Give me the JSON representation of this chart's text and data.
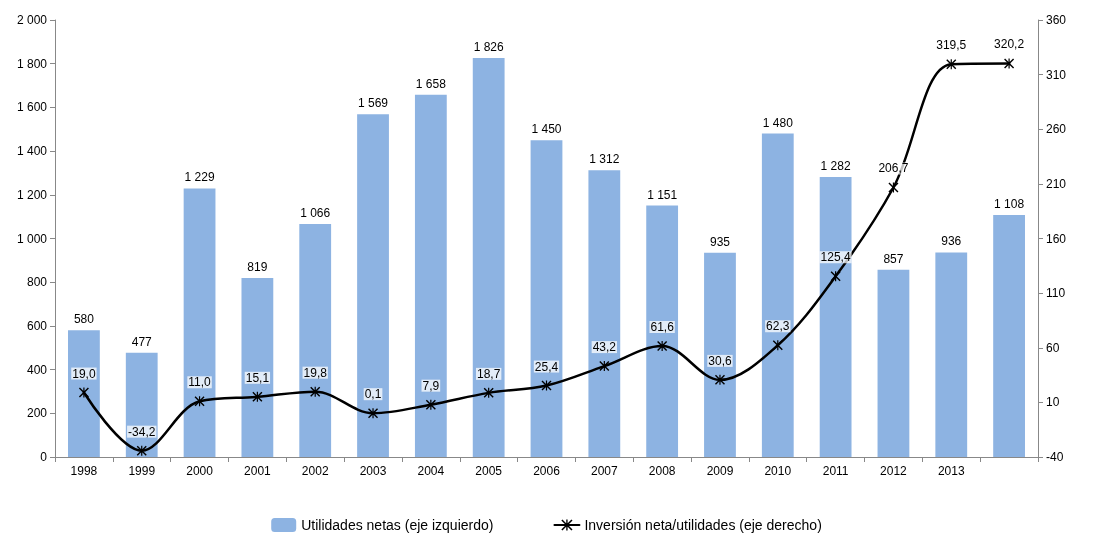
{
  "chart_data": {
    "type": "bar",
    "categories": [
      "1998",
      "1999",
      "2000",
      "2001",
      "2002",
      "2003",
      "2004",
      "2005",
      "2006",
      "2007",
      "2008",
      "2009",
      "2010",
      "2011",
      "2012",
      "2013",
      null
    ],
    "series": [
      {
        "name": "Utilidades netas (eje izquierdo)",
        "color": "#8db3e2",
        "values": [
          580,
          477,
          1229,
          819,
          1066,
          1569,
          1658,
          1826,
          1450,
          1312,
          1151,
          935,
          1480,
          1282,
          857,
          936,
          1108
        ],
        "value_labels": [
          "580",
          "477",
          "1 229",
          "819",
          "1 066",
          "1 569",
          "1 658",
          "1 826",
          "1 450",
          "1 312",
          "1 151",
          "935",
          "1 480",
          "1 282",
          "857",
          "936",
          "1 108"
        ]
      },
      {
        "name": "Inversión neta/utilidades (eje derecho)",
        "type": "line",
        "axis": "y2",
        "color": "#000000",
        "marker": "cross",
        "line_style": "solid",
        "values": [
          19.0,
          -34.2,
          11.0,
          15.1,
          19.8,
          0.1,
          7.9,
          18.7,
          25.4,
          43.2,
          61.6,
          30.6,
          62.3,
          125.4,
          206.7,
          319.5,
          320.2
        ],
        "value_labels": [
          "19,0",
          "-34,2",
          "11,0",
          "15,1",
          "19,8",
          "0,1",
          "7,9",
          "18,7",
          "25,4",
          "43,2",
          "61,6",
          "30,6",
          "62,3",
          "125,4",
          "206,7",
          "319,5",
          "320,2"
        ]
      }
    ],
    "ylim": [
      0,
      2000
    ],
    "yticks": [
      0,
      200,
      400,
      600,
      800,
      {
        "value": 1000,
        "label": "1 000"
      },
      {
        "value": 1200,
        "label": "1 200"
      },
      {
        "value": 1400,
        "label": "1 400"
      },
      {
        "value": 1600,
        "label": "1 600"
      },
      {
        "value": 1800,
        "label": "1 800"
      },
      {
        "value": 2000,
        "label": "2 000"
      }
    ],
    "y2lim": [
      -40,
      360
    ],
    "y2ticks": [
      -40,
      10,
      60,
      110,
      160,
      210,
      260,
      310,
      360
    ],
    "grid": false,
    "legend": "bottom"
  }
}
